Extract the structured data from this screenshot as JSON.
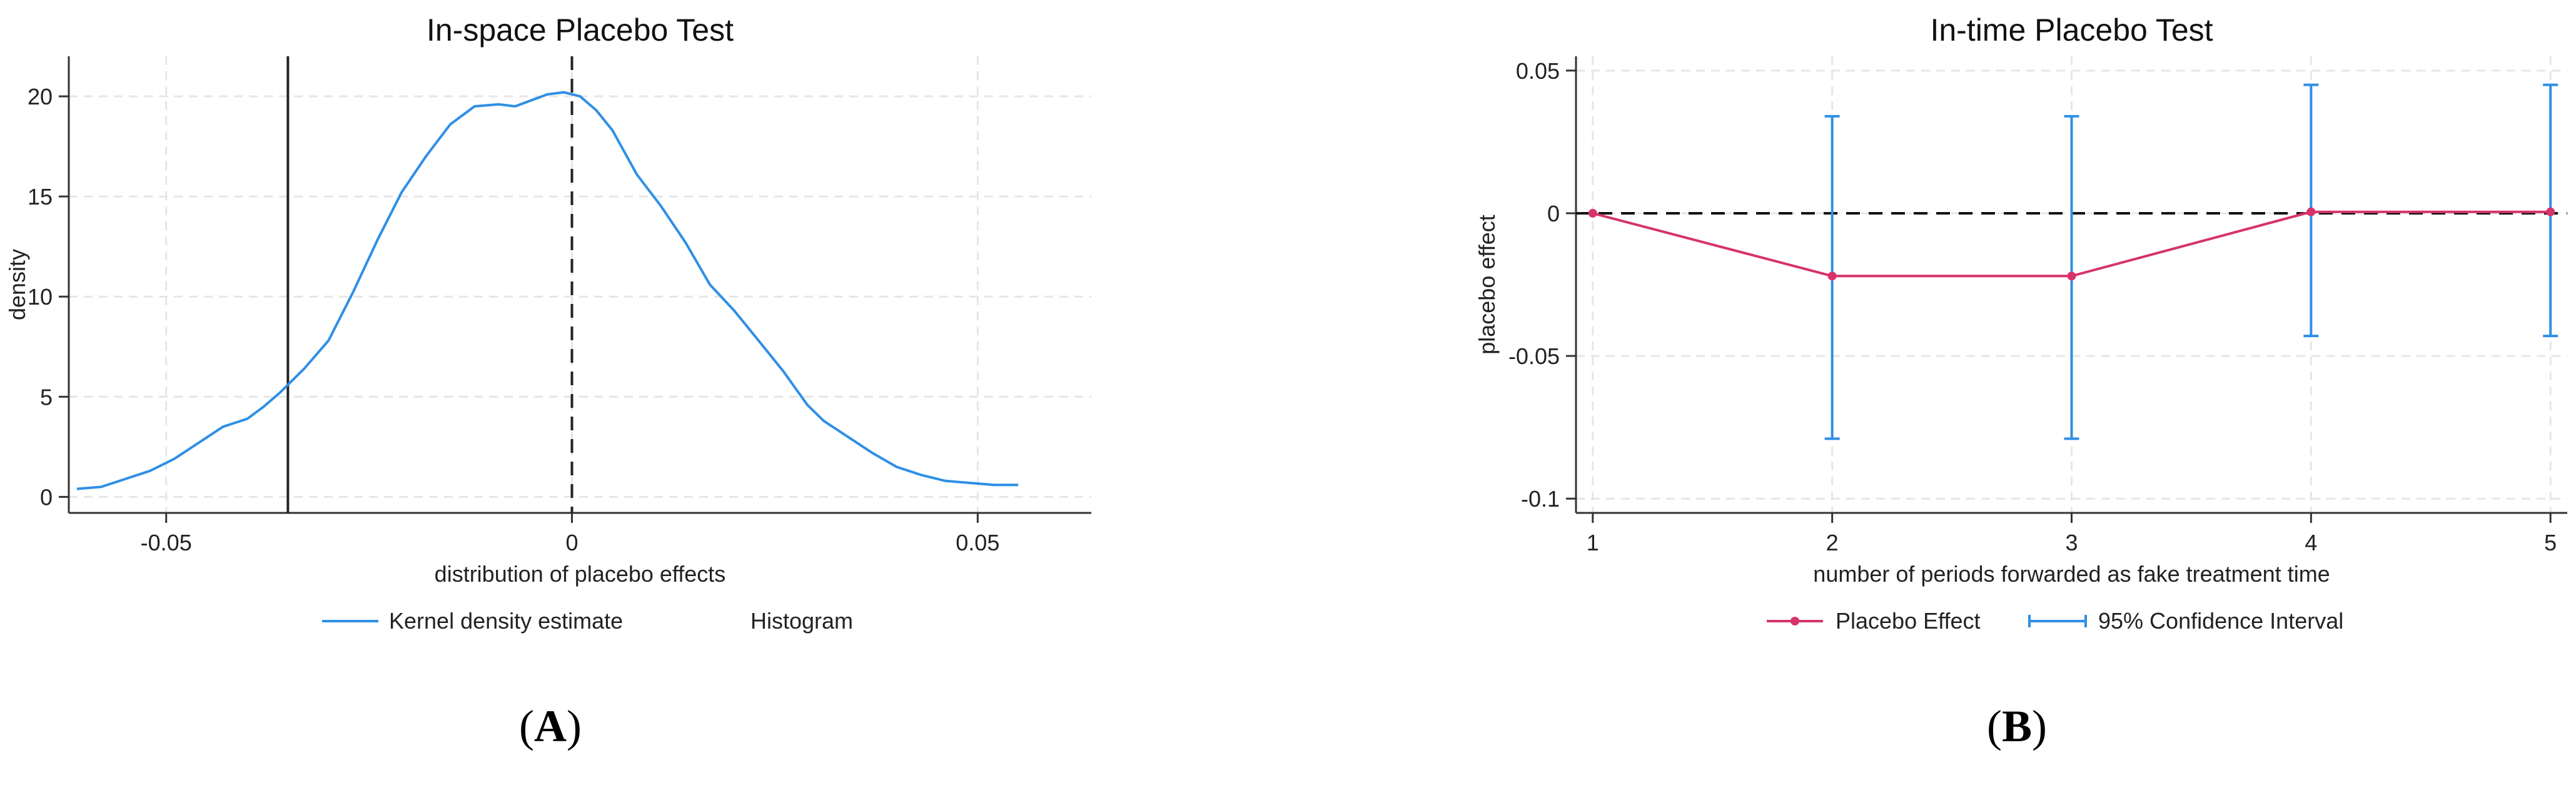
{
  "chart_data": [
    {
      "panel_label": "A",
      "type": "line",
      "title": "In-space Placebo Test",
      "xlabel": "distribution of placebo effects",
      "ylabel": "density",
      "xlim": [
        -0.062,
        0.064
      ],
      "ylim": [
        -0.8,
        22
      ],
      "xticks": [
        -0.05,
        0,
        0.05
      ],
      "xtick_labels": [
        "-0.05",
        "0",
        "0.05"
      ],
      "yticks": [
        0,
        5,
        10,
        15,
        20
      ],
      "ytick_labels": [
        "0",
        "5",
        "10",
        "15",
        "20"
      ],
      "grid": true,
      "series": [
        {
          "name": "Kernel density estimate",
          "color": "#2f8fe6",
          "x": [
            -0.061,
            -0.058,
            -0.055,
            -0.052,
            -0.049,
            -0.046,
            -0.043,
            -0.04,
            -0.038,
            -0.036,
            -0.035,
            -0.033,
            -0.03,
            -0.027,
            -0.024,
            -0.021,
            -0.018,
            -0.015,
            -0.012,
            -0.009,
            -0.007,
            -0.005,
            -0.003,
            -0.001,
            0.001,
            0.003,
            0.005,
            0.008,
            0.011,
            0.014,
            0.017,
            0.02,
            0.023,
            0.026,
            0.029,
            0.031,
            0.034,
            0.037,
            0.04,
            0.043,
            0.046,
            0.049,
            0.052,
            0.055
          ],
          "y": [
            0.4,
            0.5,
            0.9,
            1.3,
            1.9,
            2.7,
            3.5,
            3.9,
            4.5,
            5.2,
            5.6,
            6.4,
            7.8,
            10.2,
            12.8,
            15.2,
            17.0,
            18.6,
            19.5,
            19.6,
            19.5,
            19.8,
            20.1,
            20.2,
            20.0,
            19.3,
            18.3,
            16.1,
            14.5,
            12.7,
            10.6,
            9.3,
            7.8,
            6.3,
            4.6,
            3.8,
            3.0,
            2.2,
            1.5,
            1.1,
            0.8,
            0.7,
            0.6,
            0.6
          ]
        }
      ],
      "vlines": [
        {
          "x": -0.035,
          "style": "solid"
        },
        {
          "x": 0,
          "style": "dashed"
        }
      ],
      "legend": {
        "position": "bottom",
        "entries": [
          "Kernel density estimate",
          "Histogram"
        ]
      }
    },
    {
      "panel_label": "B",
      "type": "line",
      "title": "In-time Placebo Test",
      "xlabel": "number of periods forwarded as fake treatment time",
      "ylabel": "placebo effect",
      "xlim": [
        0.93,
        5.07
      ],
      "ylim": [
        -0.105,
        0.055
      ],
      "xticks": [
        1,
        2,
        3,
        4,
        5
      ],
      "xtick_labels": [
        "1",
        "2",
        "3",
        "4",
        "5"
      ],
      "yticks": [
        0.05,
        0,
        -0.05,
        -0.1
      ],
      "ytick_labels": [
        "0.05",
        "0",
        "-0.05",
        "-0.1"
      ],
      "grid": true,
      "hline": {
        "y": 0,
        "style": "dashed"
      },
      "series": [
        {
          "name": "Placebo Effect",
          "color": "#d6336c",
          "x": [
            1,
            2,
            3,
            4,
            5
          ],
          "y": [
            0,
            -0.022,
            -0.022,
            0.0005,
            0.0005
          ]
        },
        {
          "name": "95% Confidence Interval",
          "color": "#2f8fe6",
          "x": [
            2,
            3,
            4,
            5
          ],
          "lower": [
            -0.079,
            -0.079,
            -0.043,
            -0.043
          ],
          "upper": [
            0.034,
            0.034,
            0.045,
            0.045
          ]
        }
      ],
      "legend": {
        "position": "bottom",
        "entries": [
          "Placebo Effect",
          "95% Confidence Interval"
        ]
      }
    }
  ]
}
